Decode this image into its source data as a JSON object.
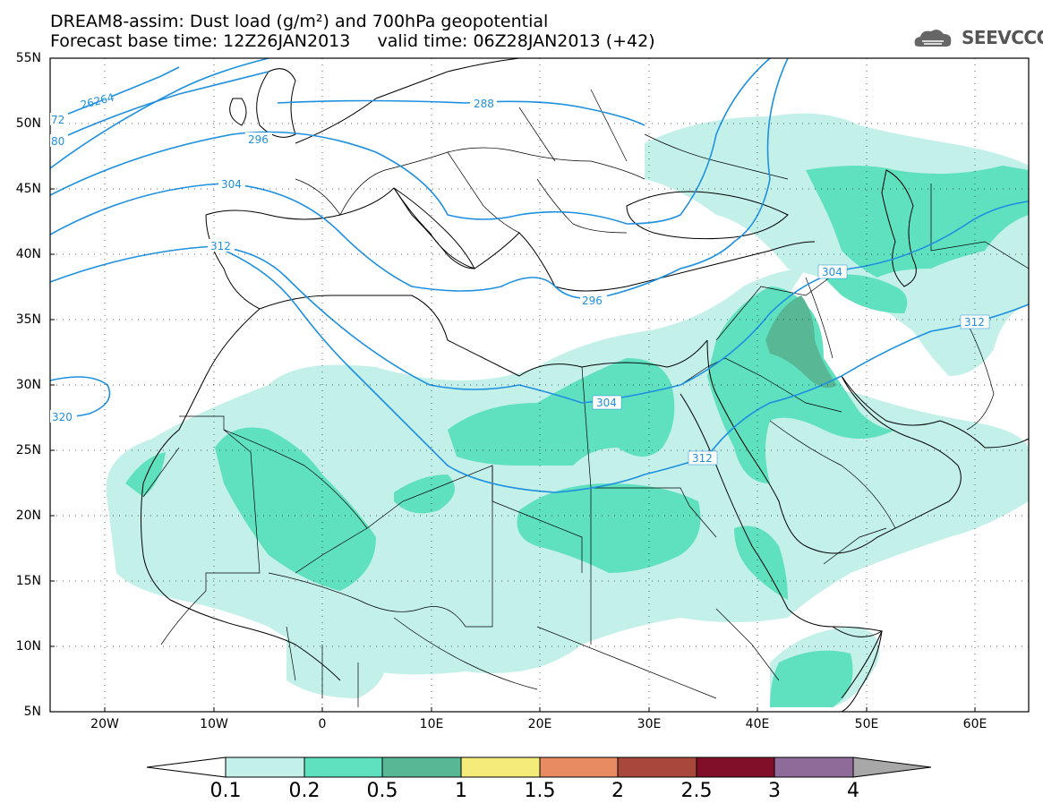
{
  "header": {
    "title_line1": "DREAM8-assim: Dust load (g/m²) and 700hPa geopotential",
    "title_line2": "Forecast base time: 12Z26JAN2013     valid time: 06Z28JAN2013 (+42)",
    "logo_text": "SEEVCCC"
  },
  "axes": {
    "lat_labels": [
      "55N",
      "50N",
      "45N",
      "40N",
      "35N",
      "30N",
      "25N",
      "20N",
      "15N",
      "10N",
      "5N"
    ],
    "lon_labels": [
      "20W",
      "10W",
      "0",
      "10E",
      "20E",
      "30E",
      "40E",
      "50E",
      "60E"
    ]
  },
  "contours": {
    "labels": [
      "26264",
      "72",
      "80",
      "288",
      "296",
      "304",
      "312",
      "320",
      "296",
      "304",
      "304",
      "312",
      "312"
    ],
    "color": "#1e90e0"
  },
  "colorbar": {
    "levels": [
      "0.1",
      "0.2",
      "0.5",
      "1",
      "1.5",
      "2",
      "2.5",
      "3",
      "4"
    ],
    "colors": [
      "#c4f0ea",
      "#5fe0bf",
      "#58b794",
      "#f3eb7a",
      "#e88b62",
      "#a8483a",
      "#820f2a",
      "#8f6b9a",
      "#a8a8a8"
    ]
  },
  "fills": {
    "low": "#c4f0ea",
    "mid": "#5fe0bf",
    "high": "#58b794"
  }
}
